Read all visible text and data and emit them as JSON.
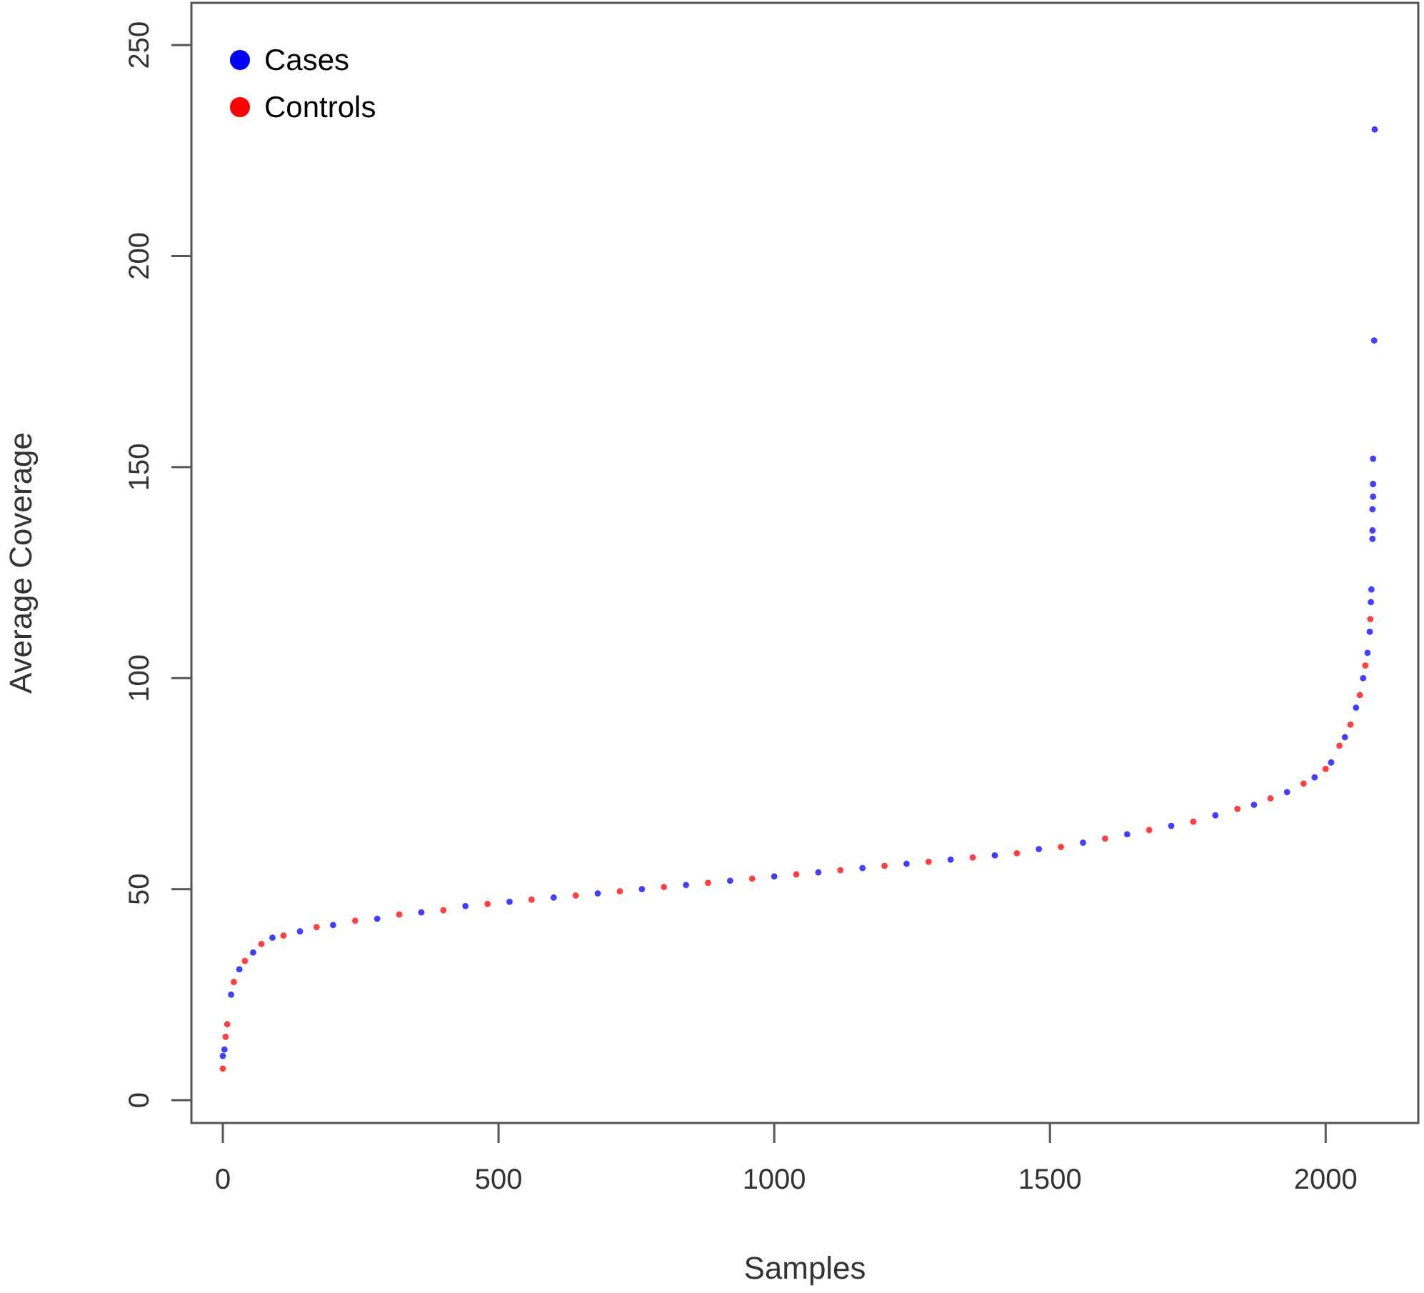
{
  "chart_data": {
    "type": "scatter",
    "xlabel": "Samples",
    "ylabel": "Average Coverage",
    "xlim": [
      -57,
      2168
    ],
    "ylim": [
      -5.4,
      260
    ],
    "xticks": [
      0,
      500,
      1000,
      1500,
      2000
    ],
    "yticks": [
      0,
      50,
      100,
      150,
      200,
      250
    ],
    "grid": false,
    "legend": "top left",
    "marker": "circle",
    "series": [
      {
        "name": "Cases",
        "color": "#0000ff",
        "x": [
          0,
          3,
          15,
          30,
          55,
          90,
          140,
          200,
          280,
          360,
          440,
          520,
          600,
          680,
          760,
          840,
          920,
          1000,
          1080,
          1160,
          1240,
          1320,
          1400,
          1480,
          1560,
          1640,
          1720,
          1800,
          1870,
          1930,
          1980,
          2010,
          2035,
          2055,
          2068,
          2076,
          2080,
          2082,
          2083,
          2085,
          2085,
          2085,
          2086,
          2086,
          2086,
          2088,
          2089
        ],
        "values": [
          10.5,
          12,
          25,
          31,
          35,
          38.5,
          40,
          41.5,
          43,
          44.5,
          46,
          47,
          48,
          49,
          50,
          51,
          52,
          53,
          54,
          55,
          56,
          57,
          58,
          59.5,
          61,
          63,
          65,
          67.5,
          70,
          73,
          76.5,
          80,
          86,
          93,
          100,
          106,
          111,
          118,
          121,
          133,
          135,
          140,
          143,
          146,
          152,
          180,
          230
        ]
      },
      {
        "name": "Controls",
        "color": "#ff0000",
        "x": [
          0,
          5,
          8,
          20,
          40,
          70,
          110,
          170,
          240,
          320,
          400,
          480,
          560,
          640,
          720,
          800,
          880,
          960,
          1040,
          1120,
          1200,
          1280,
          1360,
          1440,
          1520,
          1600,
          1680,
          1760,
          1840,
          1900,
          1960,
          2000,
          2025,
          2045,
          2062,
          2072,
          2081
        ],
        "values": [
          7.5,
          15,
          18,
          28,
          33,
          37,
          39,
          41,
          42.5,
          44,
          45,
          46.5,
          47.5,
          48.5,
          49.5,
          50.5,
          51.5,
          52.5,
          53.5,
          54.5,
          55.5,
          56.5,
          57.5,
          58.5,
          60,
          62,
          64,
          66,
          69,
          71.5,
          75,
          78.5,
          84,
          89,
          96,
          103,
          114
        ]
      }
    ]
  }
}
